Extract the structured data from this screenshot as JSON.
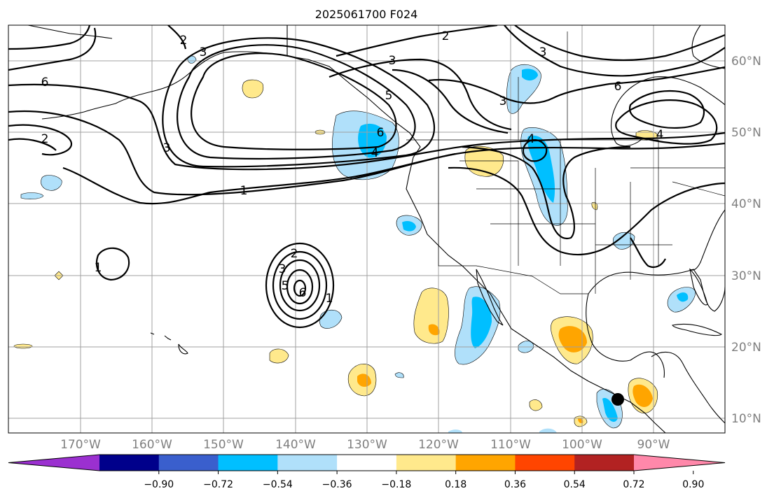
{
  "title": "2025061700 F024",
  "lat_labels": [
    "60°N",
    "50°N",
    "40°N",
    "30°N",
    "20°N",
    "10°N"
  ],
  "lon_labels": [
    "170°W",
    "160°W",
    "150°W",
    "140°W",
    "130°W",
    "120°W",
    "110°W",
    "100°W",
    "90°W"
  ],
  "colorbar": {
    "ticks": [
      "−0.90",
      "−0.72",
      "−0.54",
      "−0.36",
      "−0.18",
      "0.18",
      "0.36",
      "0.54",
      "0.72",
      "0.90"
    ],
    "colors": [
      "#9b30d0",
      "#00008b",
      "#3a5fcd",
      "#00bfff",
      "#b0e0fa",
      "#ffffff",
      "#ffe98c",
      "#ffa500",
      "#ff4500",
      "#b22222",
      "#ff88aa"
    ]
  },
  "contour_labels": {
    "c1": "6",
    "c2": "2",
    "c3": "3",
    "c4": "3",
    "c5": "1",
    "c6": "2",
    "c7": "3",
    "c8": "5",
    "c9": "6",
    "c10": "4",
    "c11": "2",
    "c12": "3",
    "c13": "3",
    "c14": "6",
    "c15": "4",
    "c16": "4",
    "c17": "1",
    "c18": "2",
    "c19": "3",
    "c20": "5",
    "c21": "6",
    "c22": "1"
  },
  "marker": "station-dot"
}
